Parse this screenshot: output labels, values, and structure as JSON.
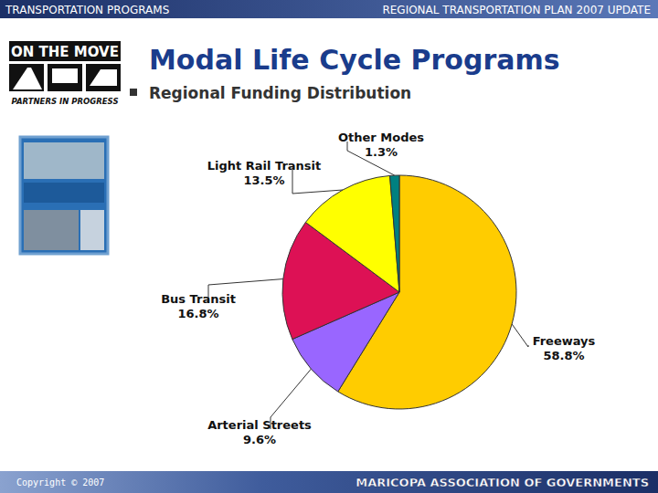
{
  "page": {
    "header_left": "TRANSPORTATION PROGRAMS",
    "header_right": "REGIONAL TRANSPORTATION PLAN 2007 UPDATE",
    "logo_title": "ON THE MOVE",
    "logo_subtitle": "PARTNERS IN PROGRESS",
    "copyright": "Copyright © 2007",
    "footer": "MARICOPA ASSOCIATION OF GOVERNMENTS"
  },
  "chart_data": {
    "type": "pie",
    "title": "Modal Life Cycle Programs",
    "subtitle": "Regional Funding Distribution",
    "categories": [
      "Freeways",
      "Arterial Streets",
      "Bus Transit",
      "Light Rail Transit",
      "Other Modes"
    ],
    "values": [
      58.8,
      9.6,
      16.8,
      13.5,
      1.3
    ],
    "value_labels": [
      "58.8%",
      "9.6%",
      "16.8%",
      "13.5%",
      "1.3%"
    ],
    "colors": [
      "#ffcc00",
      "#9966ff",
      "#dd1155",
      "#ffff00",
      "#008080"
    ],
    "data_labels": true
  }
}
